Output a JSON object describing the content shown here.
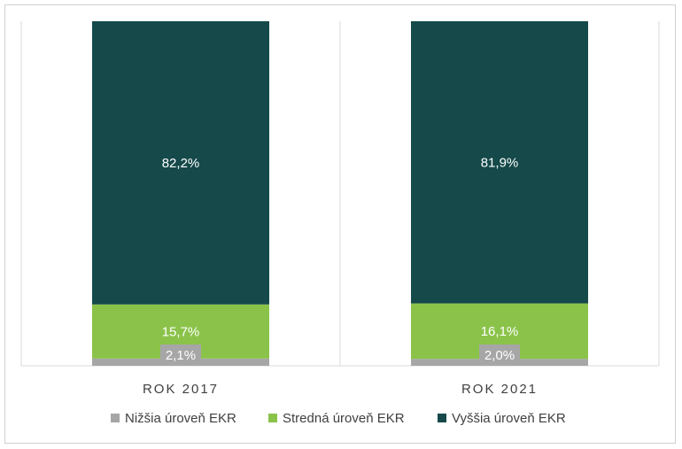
{
  "chart_data": {
    "type": "bar",
    "stacked": true,
    "categories": [
      "ROK 2017",
      "ROK 2021"
    ],
    "series": [
      {
        "name": "Nižšia úroveň EKR",
        "values": [
          2.1,
          2.0
        ],
        "labels": [
          "2,1%",
          "2,0%"
        ],
        "color": "#a6a6a6"
      },
      {
        "name": "Stredná úroveň EKR",
        "values": [
          15.7,
          16.1
        ],
        "labels": [
          "15,7%",
          "16,1%"
        ],
        "color": "#8bc34a"
      },
      {
        "name": "Vyššia úroveň EKR",
        "values": [
          82.2,
          81.9
        ],
        "labels": [
          "82,2%",
          "81,9%"
        ],
        "color": "#15494a"
      }
    ],
    "ylim": [
      0,
      100
    ],
    "grid": false,
    "legend_position": "bottom"
  }
}
